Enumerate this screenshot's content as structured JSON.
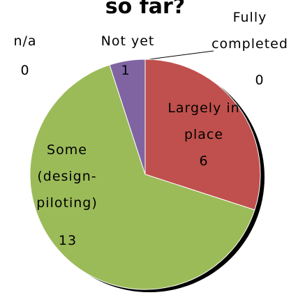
{
  "chart_data": {
    "type": "pie",
    "title": "so far?",
    "categories": [
      "Fully completed",
      "Largely in place",
      "Some (design-piloting)",
      "Not yet",
      "n/a"
    ],
    "values": [
      0,
      6,
      13,
      1,
      0
    ],
    "colors": [
      "#4f81bd",
      "#c0504d",
      "#9bbb59",
      "#8064a2",
      "#4bacc6"
    ]
  }
}
